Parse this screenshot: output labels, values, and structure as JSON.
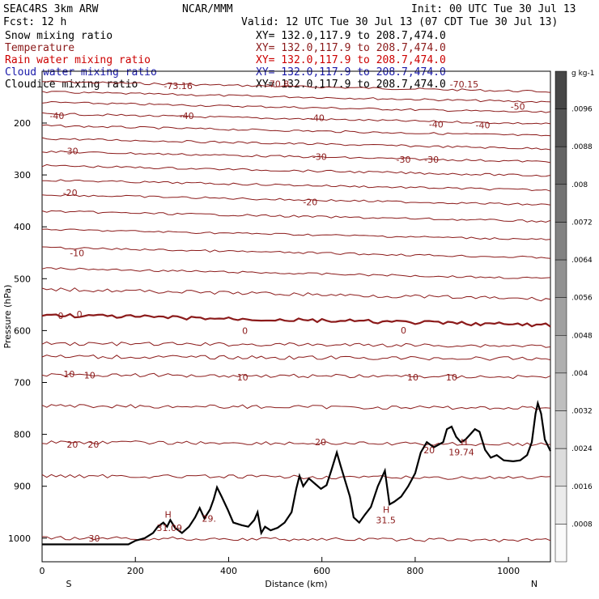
{
  "colors": {
    "temperature": "#8b1a1a",
    "rain": "#cc0000",
    "cloud_water": "#1a1aaa",
    "terrain": "#000000",
    "text": "#000000"
  },
  "header": {
    "model": "SEAC4RS  3km ARW",
    "center": "NCAR/MMM",
    "init": "Init: 00 UTC Tue 30 Jul 13",
    "fcst": "Fcst:   12 h",
    "valid": "Valid: 12 UTC Tue 30 Jul 13 (07 CDT Tue 30 Jul 13)"
  },
  "legend": [
    {
      "name": "Snow mixing ratio",
      "xy": "XY= 132.0,117.9 to 208.7,474.0",
      "color": "#000000"
    },
    {
      "name": "Temperature",
      "xy": "XY= 132.0,117.9 to 208.7,474.0",
      "color": "#8b1a1a"
    },
    {
      "name": "Rain water mixing ratio",
      "xy": "XY= 132.0,117.9 to 208.7,474.0",
      "color": "#cc0000"
    },
    {
      "name": "Cloud water mixing ratio",
      "xy": "XY= 132.0,117.9 to 208.7,474.0",
      "color": "#1a1aaa"
    },
    {
      "name": "Cloudice mixing ratio",
      "xy": "XY= 132.0,117.9 to 208.7,474.0",
      "color": "#000000"
    }
  ],
  "chart_data": {
    "type": "cross-section",
    "xlabel": "Distance (km)",
    "ylabel": "Pressure (hPa)",
    "xlim": [
      0,
      1090
    ],
    "ylim": [
      1050,
      100
    ],
    "x_ticks": [
      0,
      200,
      400,
      600,
      800,
      1000
    ],
    "y_ticks": [
      200,
      300,
      400,
      500,
      600,
      700,
      800,
      900,
      1000
    ],
    "x_end_labels": {
      "left": "S",
      "right": "N"
    },
    "colorbar": {
      "unit": "g kg-1",
      "ticks": [
        ".0008",
        ".0016",
        ".0024",
        ".0032",
        ".004",
        ".0048",
        ".0056",
        ".0064",
        ".0072",
        ".008",
        ".0088",
        ".0096"
      ]
    },
    "contour_labels": [
      {
        "text": "-73.16",
        "x": 292,
        "p": 128
      },
      {
        "text": "-70.8",
        "x": 505,
        "p": 124
      },
      {
        "text": "-70.15",
        "x": 905,
        "p": 125
      },
      {
        "text": "-50",
        "x": 1020,
        "p": 168
      },
      {
        "text": "-40",
        "x": 32,
        "p": 186
      },
      {
        "text": "-40",
        "x": 310,
        "p": 186
      },
      {
        "text": "-40",
        "x": 590,
        "p": 190
      },
      {
        "text": "-40",
        "x": 845,
        "p": 202
      },
      {
        "text": "-40",
        "x": 945,
        "p": 204
      },
      {
        "text": "-30",
        "x": 62,
        "p": 254
      },
      {
        "text": "-30",
        "x": 595,
        "p": 265
      },
      {
        "text": "-30",
        "x": 775,
        "p": 270
      },
      {
        "text": "-30",
        "x": 835,
        "p": 270
      },
      {
        "text": "-20",
        "x": 60,
        "p": 334
      },
      {
        "text": "-20",
        "x": 575,
        "p": 352
      },
      {
        "text": "-10",
        "x": 75,
        "p": 450
      },
      {
        "text": "0",
        "x": 40,
        "p": 571
      },
      {
        "text": "0",
        "x": 80,
        "p": 568
      },
      {
        "text": "0",
        "x": 435,
        "p": 600
      },
      {
        "text": "0",
        "x": 775,
        "p": 599
      },
      {
        "text": "10",
        "x": 58,
        "p": 684
      },
      {
        "text": "10",
        "x": 102,
        "p": 686
      },
      {
        "text": "10",
        "x": 430,
        "p": 690
      },
      {
        "text": "10",
        "x": 795,
        "p": 690
      },
      {
        "text": "10",
        "x": 878,
        "p": 690
      },
      {
        "text": "20",
        "x": 65,
        "p": 819
      },
      {
        "text": "20",
        "x": 110,
        "p": 819
      },
      {
        "text": "20",
        "x": 597,
        "p": 815
      },
      {
        "text": "30",
        "x": 112,
        "p": 1000
      },
      {
        "text": "H",
        "x": 270,
        "p": 954
      },
      {
        "text": "31.09",
        "x": 273,
        "p": 980
      },
      {
        "text": "29.",
        "x": 358,
        "p": 962
      },
      {
        "text": "H",
        "x": 738,
        "p": 945
      },
      {
        "text": "31.5",
        "x": 737,
        "p": 965
      },
      {
        "text": "H",
        "x": 905,
        "p": 815
      },
      {
        "text": "19.74",
        "x": 899,
        "p": 834
      },
      {
        "text": "20",
        "x": 830,
        "p": 830
      }
    ],
    "isotherm_base_pressures": [
      120,
      140,
      160,
      182,
      205,
      230,
      255,
      282,
      310,
      338,
      370,
      405,
      440,
      480,
      520,
      570,
      625,
      650,
      685,
      745,
      815,
      880,
      1000
    ],
    "terrain": [
      {
        "x": 0,
        "p": 1012
      },
      {
        "x": 185,
        "p": 1012
      },
      {
        "x": 200,
        "p": 1005
      },
      {
        "x": 220,
        "p": 1000
      },
      {
        "x": 238,
        "p": 990
      },
      {
        "x": 248,
        "p": 978
      },
      {
        "x": 260,
        "p": 970
      },
      {
        "x": 268,
        "p": 978
      },
      {
        "x": 275,
        "p": 965
      },
      {
        "x": 285,
        "p": 980
      },
      {
        "x": 300,
        "p": 990
      },
      {
        "x": 315,
        "p": 978
      },
      {
        "x": 328,
        "p": 960
      },
      {
        "x": 338,
        "p": 942
      },
      {
        "x": 348,
        "p": 962
      },
      {
        "x": 360,
        "p": 945
      },
      {
        "x": 368,
        "p": 925
      },
      {
        "x": 375,
        "p": 902
      },
      {
        "x": 385,
        "p": 920
      },
      {
        "x": 398,
        "p": 945
      },
      {
        "x": 410,
        "p": 970
      },
      {
        "x": 428,
        "p": 975
      },
      {
        "x": 442,
        "p": 978
      },
      {
        "x": 455,
        "p": 965
      },
      {
        "x": 462,
        "p": 950
      },
      {
        "x": 470,
        "p": 990
      },
      {
        "x": 478,
        "p": 978
      },
      {
        "x": 490,
        "p": 985
      },
      {
        "x": 505,
        "p": 980
      },
      {
        "x": 520,
        "p": 970
      },
      {
        "x": 535,
        "p": 950
      },
      {
        "x": 545,
        "p": 905
      },
      {
        "x": 552,
        "p": 880
      },
      {
        "x": 560,
        "p": 900
      },
      {
        "x": 572,
        "p": 885
      },
      {
        "x": 585,
        "p": 895
      },
      {
        "x": 598,
        "p": 905
      },
      {
        "x": 610,
        "p": 898
      },
      {
        "x": 620,
        "p": 870
      },
      {
        "x": 632,
        "p": 835
      },
      {
        "x": 640,
        "p": 860
      },
      {
        "x": 650,
        "p": 890
      },
      {
        "x": 660,
        "p": 920
      },
      {
        "x": 668,
        "p": 960
      },
      {
        "x": 680,
        "p": 970
      },
      {
        "x": 692,
        "p": 955
      },
      {
        "x": 705,
        "p": 940
      },
      {
        "x": 720,
        "p": 900
      },
      {
        "x": 735,
        "p": 870
      },
      {
        "x": 745,
        "p": 935
      },
      {
        "x": 755,
        "p": 930
      },
      {
        "x": 770,
        "p": 920
      },
      {
        "x": 785,
        "p": 900
      },
      {
        "x": 800,
        "p": 875
      },
      {
        "x": 812,
        "p": 835
      },
      {
        "x": 825,
        "p": 815
      },
      {
        "x": 840,
        "p": 825
      },
      {
        "x": 850,
        "p": 820
      },
      {
        "x": 860,
        "p": 815
      },
      {
        "x": 868,
        "p": 790
      },
      {
        "x": 878,
        "p": 785
      },
      {
        "x": 888,
        "p": 805
      },
      {
        "x": 898,
        "p": 815
      },
      {
        "x": 908,
        "p": 810
      },
      {
        "x": 918,
        "p": 800
      },
      {
        "x": 928,
        "p": 790
      },
      {
        "x": 938,
        "p": 795
      },
      {
        "x": 950,
        "p": 830
      },
      {
        "x": 962,
        "p": 845
      },
      {
        "x": 975,
        "p": 840
      },
      {
        "x": 990,
        "p": 850
      },
      {
        "x": 1010,
        "p": 852
      },
      {
        "x": 1025,
        "p": 850
      },
      {
        "x": 1040,
        "p": 840
      },
      {
        "x": 1050,
        "p": 815
      },
      {
        "x": 1058,
        "p": 760
      },
      {
        "x": 1063,
        "p": 740
      },
      {
        "x": 1070,
        "p": 760
      },
      {
        "x": 1078,
        "p": 810
      },
      {
        "x": 1090,
        "p": 832
      }
    ]
  }
}
